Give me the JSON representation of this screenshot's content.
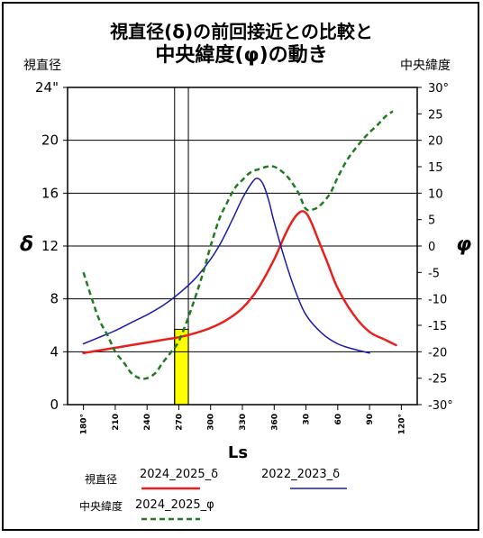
{
  "chart_data": {
    "type": "line",
    "title_line1": "視直径(δ)の前回接近との比較と",
    "title_line2": "中央緯度(φ)の動き",
    "left_axis_caption": "視直径",
    "right_axis_caption": "中央緯度",
    "left_axis_symbol": "δ",
    "right_axis_symbol": "φ",
    "xlabel": "Ls",
    "left_ylim": [
      0,
      24
    ],
    "right_ylim": [
      -30,
      30
    ],
    "left_ticks": [
      "0",
      "4",
      "8",
      "12",
      "16",
      "20",
      "24\""
    ],
    "left_tick_values": [
      0,
      4,
      8,
      12,
      16,
      20,
      24
    ],
    "right_ticks": [
      "-30°",
      "-25",
      "-20",
      "-15",
      "-10",
      "-5",
      "0",
      "5",
      "10",
      "15",
      "20",
      "25",
      "30°"
    ],
    "right_tick_values": [
      -30,
      -25,
      -20,
      -15,
      -10,
      -5,
      0,
      5,
      10,
      15,
      20,
      25,
      30
    ],
    "x_ticks": [
      "180°",
      "210",
      "240",
      "270",
      "300",
      "330",
      "360",
      "30",
      "60",
      "90",
      "120°"
    ],
    "x_tick_values": [
      180,
      210,
      240,
      270,
      300,
      330,
      360,
      390,
      420,
      450,
      480
    ],
    "xlim": [
      165,
      495
    ],
    "grid": "horizontal",
    "highlight_x": [
      266,
      279
    ],
    "highlight_top": 5.7,
    "vlines": [
      266,
      279
    ],
    "series": [
      {
        "name": "2024_2025_δ",
        "axis": "left",
        "color": "#e8201c",
        "style": "solid",
        "x": [
          180,
          195,
          210,
          225,
          240,
          255,
          270,
          285,
          300,
          315,
          330,
          345,
          360,
          370,
          378,
          385,
          390,
          395,
          400,
          410,
          420,
          435,
          450,
          465,
          475
        ],
        "y": [
          3.9,
          4.1,
          4.3,
          4.5,
          4.7,
          4.9,
          5.1,
          5.4,
          5.8,
          6.4,
          7.3,
          8.8,
          11.0,
          12.8,
          14.0,
          14.6,
          14.5,
          13.8,
          12.8,
          10.8,
          8.8,
          6.8,
          5.5,
          4.9,
          4.5
        ]
      },
      {
        "name": "2022_2023_δ",
        "axis": "left",
        "color": "#1a1aaa",
        "style": "solid",
        "x": [
          180,
          195,
          210,
          225,
          240,
          255,
          270,
          285,
          300,
          310,
          320,
          330,
          340,
          345,
          350,
          355,
          360,
          370,
          380,
          390,
          405,
          420,
          435,
          450
        ],
        "y": [
          4.6,
          5.1,
          5.6,
          6.2,
          6.8,
          7.5,
          8.4,
          9.5,
          11.0,
          12.3,
          13.9,
          15.6,
          16.9,
          17.1,
          16.6,
          15.4,
          13.8,
          11.0,
          8.6,
          6.8,
          5.4,
          4.6,
          4.2,
          3.9
        ]
      },
      {
        "name": "2024_2025_φ",
        "axis": "right",
        "color": "#217a21",
        "style": "dashed",
        "x": [
          180,
          188,
          195,
          203,
          210,
          218,
          225,
          233,
          240,
          248,
          255,
          263,
          270,
          278,
          285,
          293,
          300,
          308,
          315,
          323,
          330,
          338,
          345,
          353,
          360,
          368,
          375,
          383,
          390,
          398,
          405,
          413,
          420,
          428,
          435,
          443,
          450,
          458,
          465,
          472
        ],
        "y": [
          -5.0,
          -10.0,
          -14.0,
          -17.0,
          -20.0,
          -22.0,
          -24.0,
          -25.0,
          -25.0,
          -24.0,
          -22.0,
          -20.0,
          -18.0,
          -14.0,
          -10.0,
          -5.0,
          0.0,
          5.0,
          8.0,
          11.0,
          12.5,
          14.0,
          14.5,
          15.0,
          15.0,
          14.0,
          12.5,
          10.0,
          7.0,
          7.0,
          8.0,
          10.0,
          13.0,
          16.0,
          18.0,
          20.0,
          21.5,
          23.0,
          24.5,
          25.5
        ]
      }
    ],
    "legend": {
      "placement": "bottom",
      "group_labels": [
        "視直径",
        "中央緯度"
      ]
    }
  }
}
